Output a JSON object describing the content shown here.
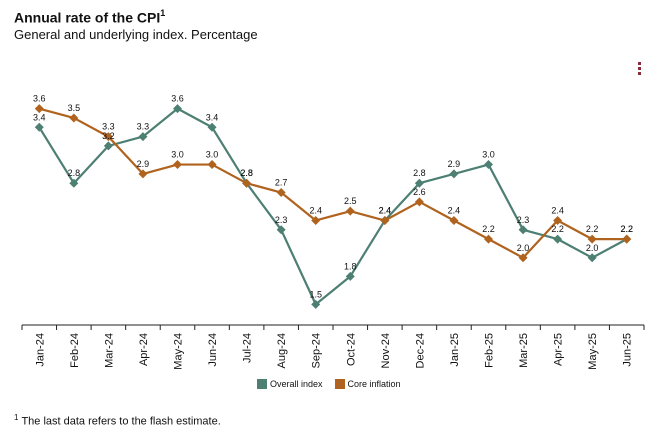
{
  "title": "Annual rate of the CPI",
  "title_footnote_mark": "1",
  "subtitle": "General and underlying index. Percentage",
  "footnote_mark": "1",
  "footnote": "The last data refers to the flash estimate.",
  "menu_icon": "hamburger-menu-icon",
  "colors": {
    "overall": "#4d7f73",
    "core": "#b0631e",
    "axis": "#222222"
  },
  "chart_data": {
    "type": "line",
    "categories": [
      "Jan-24",
      "Feb-24",
      "Mar-24",
      "Apr-24",
      "May-24",
      "Jun-24",
      "Jul-24",
      "Aug-24",
      "Sep-24",
      "Oct-24",
      "Nov-24",
      "Dec-24",
      "Jan-25",
      "Feb-25",
      "Mar-25",
      "Apr-25",
      "May-25",
      "Jun-25"
    ],
    "series": [
      {
        "name": "Overall index",
        "marker": "diamond",
        "values": [
          3.4,
          2.8,
          3.2,
          3.3,
          3.6,
          3.4,
          2.8,
          2.3,
          1.5,
          1.8,
          2.4,
          2.8,
          2.9,
          3.0,
          2.3,
          2.2,
          2.0,
          2.2
        ],
        "labels": [
          "3.4",
          "2.8",
          "3.2",
          "3.3",
          "3.6",
          "3.4",
          "2.8",
          "2.3",
          "1.5",
          "1.8",
          "2.4",
          "2.8",
          "2.9",
          "3.0",
          "2.3",
          "2.2",
          "2.0",
          "2.2"
        ]
      },
      {
        "name": "Core inflation",
        "marker": "diamond",
        "values": [
          3.6,
          3.5,
          3.3,
          2.9,
          3.0,
          3.0,
          2.8,
          2.7,
          2.4,
          2.5,
          2.4,
          2.6,
          2.4,
          2.2,
          2.0,
          2.4,
          2.2,
          2.2
        ],
        "labels": [
          "3.6",
          "3.5",
          "3.3",
          "2.9",
          "3.0",
          "3.0",
          "2.8",
          "2.7",
          "2.4",
          "2.5",
          "2.4",
          "2.6",
          "2.4",
          "2.2",
          "2.0",
          "2.4",
          "2.2",
          "2.2"
        ]
      }
    ],
    "ylim": [
      1.3,
      3.8
    ],
    "grid": false,
    "legend_position": "bottom-center"
  }
}
